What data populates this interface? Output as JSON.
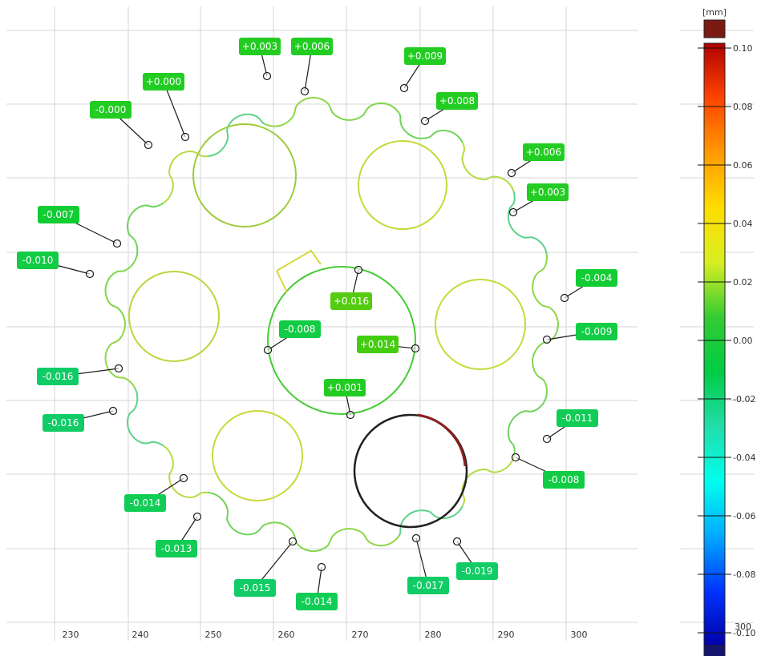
{
  "unit_label": "[mm]",
  "x_ticks": [
    "230",
    "240",
    "250",
    "260",
    "270",
    "280",
    "290",
    "300"
  ],
  "scale": {
    "ticks": [
      "0.10",
      "0.08",
      "0.06",
      "0.04",
      "0.02",
      "0.00",
      "-0.02",
      "-0.04",
      "-0.06",
      "-0.08",
      "-0.10"
    ],
    "corner_label": "300",
    "over_color": "#7a1a12",
    "under_color": "#14146e",
    "gradient": [
      "#b00000",
      "#ff4400",
      "#ff9900",
      "#ffdd00",
      "#d8ee22",
      "#33cc33",
      "#00cc44",
      "#22ddaa",
      "#00ffee",
      "#00aaff",
      "#0033ff",
      "#0000aa"
    ]
  },
  "deviation_labels": [
    {
      "id": "d01",
      "text": "+0.003",
      "color": "#22cc22"
    },
    {
      "id": "d02",
      "text": "+0.006",
      "color": "#22cc22"
    },
    {
      "id": "d03",
      "text": "+0.009",
      "color": "#22cc22"
    },
    {
      "id": "d04",
      "text": "+0.000",
      "color": "#22cc22"
    },
    {
      "id": "d05",
      "text": "-0.000",
      "color": "#22cc22"
    },
    {
      "id": "d06",
      "text": "+0.008",
      "color": "#22cc22"
    },
    {
      "id": "d07",
      "text": "+0.006",
      "color": "#22cc22"
    },
    {
      "id": "d08",
      "text": "+0.003",
      "color": "#22cc22"
    },
    {
      "id": "d09",
      "text": "-0.007",
      "color": "#11cc33"
    },
    {
      "id": "d10",
      "text": "-0.010",
      "color": "#11cc44"
    },
    {
      "id": "d11",
      "text": "-0.004",
      "color": "#11cc33"
    },
    {
      "id": "d12",
      "text": "+0.016",
      "color": "#55cc11"
    },
    {
      "id": "d13",
      "text": "-0.008",
      "color": "#11cc44"
    },
    {
      "id": "d14",
      "text": "+0.014",
      "color": "#44cc11"
    },
    {
      "id": "d15",
      "text": "-0.009",
      "color": "#11cc44"
    },
    {
      "id": "d16",
      "text": "-0.016",
      "color": "#11cc66"
    },
    {
      "id": "d17",
      "text": "+0.001",
      "color": "#22cc22"
    },
    {
      "id": "d18",
      "text": "-0.016",
      "color": "#11cc66"
    },
    {
      "id": "d19",
      "text": "-0.011",
      "color": "#11cc55"
    },
    {
      "id": "d20",
      "text": "-0.008",
      "color": "#11cc44"
    },
    {
      "id": "d21",
      "text": "-0.014",
      "color": "#11cc55"
    },
    {
      "id": "d22",
      "text": "-0.013",
      "color": "#11cc55"
    },
    {
      "id": "d23",
      "text": "-0.019",
      "color": "#11cc66"
    },
    {
      "id": "d24",
      "text": "-0.017",
      "color": "#11cc66"
    },
    {
      "id": "d25",
      "text": "-0.015",
      "color": "#11cc66"
    },
    {
      "id": "d26",
      "text": "-0.014",
      "color": "#11cc55"
    }
  ]
}
